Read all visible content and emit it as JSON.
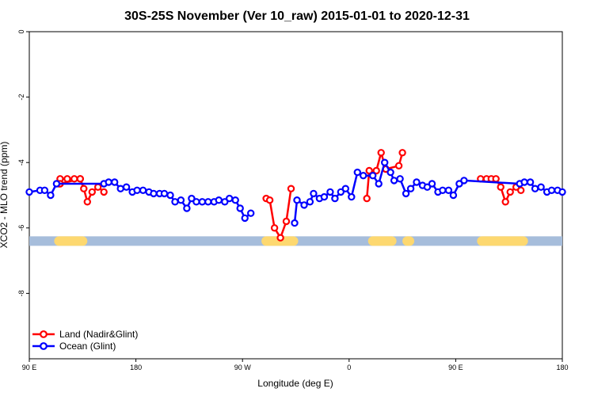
{
  "chart_data": {
    "type": "line",
    "title": "30S-25S November (Ver 10_raw)   2015-01-01 to 2020-12-31",
    "xlabel": "Longitude (deg E)",
    "ylabel": "XCO2 - MLO trend (ppm)",
    "xlim": [
      90,
      540
    ],
    "ylim": [
      -10,
      0
    ],
    "x_ticks": [
      {
        "value": 90,
        "label": "90 E"
      },
      {
        "value": 180,
        "label": "180"
      },
      {
        "value": 270,
        "label": "90 W"
      },
      {
        "value": 360,
        "label": "0"
      },
      {
        "value": 450,
        "label": "90 E"
      },
      {
        "value": 540,
        "label": "180"
      }
    ],
    "y_ticks": [
      {
        "value": 0,
        "label": "0"
      },
      {
        "value": -2,
        "label": "-2"
      },
      {
        "value": -4,
        "label": "-4"
      },
      {
        "value": -6,
        "label": "-6"
      },
      {
        "value": -8,
        "label": "-8"
      }
    ],
    "grid": false,
    "legend_position": "bottom-left",
    "colors": {
      "land": "#ff0000",
      "ocean": "#0000ff",
      "ocean_band": "#a6bddb",
      "land_band": "#fdd870"
    },
    "series": [
      {
        "name": "Land (Nadir&Glint)",
        "color": "#ff0000",
        "segments": [
          [
            [
              115,
              -4.65
            ],
            [
              116,
              -4.5
            ],
            [
              122,
              -4.5
            ],
            [
              128,
              -4.5
            ],
            [
              133,
              -4.5
            ],
            [
              116,
              -4.65
            ]
          ],
          [
            [
              133,
              -4.5
            ],
            [
              136,
              -4.8
            ],
            [
              139,
              -5.2
            ],
            [
              143,
              -4.9
            ],
            [
              148,
              -4.75
            ],
            [
              153,
              -4.9
            ]
          ],
          [
            [
              290,
              -5.1
            ],
            [
              293,
              -5.15
            ],
            [
              297,
              -6.0
            ],
            [
              302,
              -6.3
            ],
            [
              307,
              -5.8
            ],
            [
              311,
              -4.8
            ]
          ],
          [
            [
              375,
              -5.1
            ],
            [
              377,
              -4.25
            ],
            [
              383,
              -4.25
            ],
            [
              387,
              -3.7
            ],
            [
              391,
              -4.2
            ],
            [
              402,
              -4.1
            ],
            [
              405,
              -3.7
            ]
          ],
          [
            [
              471,
              -4.5
            ],
            [
              476,
              -4.5
            ],
            [
              480,
              -4.5
            ],
            [
              484,
              -4.5
            ],
            [
              488,
              -4.75
            ],
            [
              492,
              -5.2
            ],
            [
              496,
              -4.9
            ],
            [
              501,
              -4.75
            ],
            [
              505,
              -4.85
            ]
          ]
        ]
      },
      {
        "name": "Ocean (Glint)",
        "color": "#0000ff",
        "segments": [
          [
            [
              90,
              -4.9
            ],
            [
              99,
              -4.85
            ],
            [
              103,
              -4.85
            ],
            [
              108,
              -5.0
            ],
            [
              113,
              -4.65
            ],
            [
              153,
              -4.65
            ],
            [
              157,
              -4.6
            ],
            [
              162,
              -4.6
            ],
            [
              167,
              -4.8
            ],
            [
              172,
              -4.75
            ],
            [
              177,
              -4.9
            ],
            [
              181,
              -4.85
            ],
            [
              186,
              -4.85
            ],
            [
              191,
              -4.9
            ],
            [
              195,
              -4.95
            ],
            [
              200,
              -4.95
            ],
            [
              204,
              -4.95
            ],
            [
              209,
              -5.0
            ],
            [
              213,
              -5.2
            ],
            [
              218,
              -5.15
            ],
            [
              223,
              -5.4
            ],
            [
              227,
              -5.1
            ],
            [
              231,
              -5.2
            ],
            [
              236,
              -5.2
            ],
            [
              241,
              -5.2
            ],
            [
              246,
              -5.2
            ],
            [
              250,
              -5.15
            ],
            [
              255,
              -5.2
            ],
            [
              259,
              -5.1
            ],
            [
              264,
              -5.15
            ],
            [
              268,
              -5.4
            ],
            [
              272,
              -5.7
            ],
            [
              277,
              -5.55
            ]
          ],
          [
            [
              314,
              -5.85
            ],
            [
              316,
              -5.15
            ],
            [
              322,
              -5.3
            ],
            [
              327,
              -5.2
            ],
            [
              330,
              -4.95
            ],
            [
              335,
              -5.1
            ],
            [
              339,
              -5.05
            ],
            [
              344,
              -4.9
            ],
            [
              348,
              -5.1
            ],
            [
              353,
              -4.9
            ],
            [
              357,
              -4.8
            ],
            [
              362,
              -5.05
            ],
            [
              367,
              -4.3
            ],
            [
              372,
              -4.4
            ],
            [
              380,
              -4.4
            ],
            [
              385,
              -4.65
            ],
            [
              390,
              -4.0
            ],
            [
              395,
              -4.3
            ],
            [
              398,
              -4.55
            ],
            [
              403,
              -4.5
            ],
            [
              408,
              -4.95
            ],
            [
              412,
              -4.8
            ],
            [
              417,
              -4.6
            ],
            [
              422,
              -4.7
            ],
            [
              426,
              -4.75
            ],
            [
              430,
              -4.65
            ],
            [
              435,
              -4.9
            ],
            [
              439,
              -4.85
            ],
            [
              444,
              -4.85
            ],
            [
              448,
              -5.0
            ],
            [
              453,
              -4.65
            ],
            [
              457,
              -4.55
            ],
            [
              504,
              -4.65
            ],
            [
              508,
              -4.6
            ],
            [
              513,
              -4.6
            ],
            [
              517,
              -4.8
            ],
            [
              522,
              -4.75
            ],
            [
              527,
              -4.9
            ],
            [
              531,
              -4.85
            ],
            [
              536,
              -4.85
            ],
            [
              540,
              -4.9
            ]
          ]
        ]
      }
    ],
    "surface_band": {
      "y": -6.4,
      "land_ranges": [
        [
          115,
          135
        ],
        [
          290,
          313
        ],
        [
          380,
          396
        ],
        [
          409,
          411
        ],
        [
          472,
          507
        ]
      ]
    }
  }
}
